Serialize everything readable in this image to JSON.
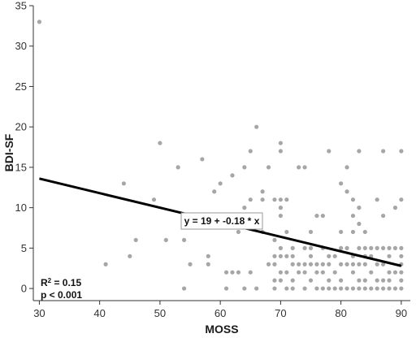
{
  "chart_data": {
    "type": "scatter",
    "xlabel": "MOSS",
    "ylabel": "BDI-SF",
    "xlim": [
      29,
      91.5
    ],
    "ylim": [
      -1.5,
      35
    ],
    "xticks": [
      30,
      40,
      50,
      60,
      70,
      80,
      90
    ],
    "yticks": [
      0,
      5,
      10,
      15,
      20,
      25,
      30,
      35
    ],
    "grid": false,
    "point_color": "#a6a6a6",
    "line_color": "#000000",
    "points": [
      [
        30,
        33
      ],
      [
        41,
        3
      ],
      [
        44,
        13
      ],
      [
        45,
        4
      ],
      [
        46,
        6
      ],
      [
        49,
        11
      ],
      [
        50,
        18
      ],
      [
        51,
        6
      ],
      [
        53,
        15
      ],
      [
        54,
        6
      ],
      [
        54,
        0
      ],
      [
        55,
        3
      ],
      [
        57,
        16
      ],
      [
        57,
        9
      ],
      [
        58,
        4
      ],
      [
        58,
        3
      ],
      [
        59,
        12
      ],
      [
        60,
        13
      ],
      [
        61,
        2
      ],
      [
        61,
        0
      ],
      [
        62,
        14
      ],
      [
        62,
        2
      ],
      [
        63,
        7
      ],
      [
        63,
        2
      ],
      [
        64,
        15
      ],
      [
        64,
        10
      ],
      [
        64,
        0
      ],
      [
        65,
        17
      ],
      [
        65,
        11
      ],
      [
        65,
        2
      ],
      [
        66,
        20
      ],
      [
        66,
        8
      ],
      [
        66,
        0
      ],
      [
        67,
        12
      ],
      [
        67,
        11
      ],
      [
        67,
        7
      ],
      [
        68,
        15
      ],
      [
        68,
        3
      ],
      [
        69,
        11
      ],
      [
        69,
        6
      ],
      [
        69,
        4
      ],
      [
        69,
        3
      ],
      [
        69,
        1
      ],
      [
        69,
        0
      ],
      [
        70,
        18
      ],
      [
        70,
        17
      ],
      [
        70,
        11
      ],
      [
        70,
        10
      ],
      [
        70,
        9
      ],
      [
        70,
        5
      ],
      [
        70,
        4
      ],
      [
        70,
        2
      ],
      [
        70,
        1
      ],
      [
        71,
        11
      ],
      [
        71,
        7
      ],
      [
        71,
        4
      ],
      [
        71,
        2
      ],
      [
        71,
        0
      ],
      [
        72,
        5
      ],
      [
        72,
        4
      ],
      [
        72,
        3
      ],
      [
        72,
        1
      ],
      [
        72,
        0
      ],
      [
        73,
        15
      ],
      [
        73,
        3
      ],
      [
        73,
        2
      ],
      [
        74,
        15
      ],
      [
        74,
        5
      ],
      [
        74,
        3
      ],
      [
        74,
        2
      ],
      [
        74,
        0
      ],
      [
        75,
        7
      ],
      [
        75,
        5
      ],
      [
        75,
        4
      ],
      [
        75,
        3
      ],
      [
        75,
        1
      ],
      [
        76,
        9
      ],
      [
        76,
        3
      ],
      [
        76,
        2
      ],
      [
        76,
        0
      ],
      [
        77,
        9
      ],
      [
        77,
        5
      ],
      [
        77,
        3
      ],
      [
        77,
        2
      ],
      [
        77,
        0
      ],
      [
        78,
        17
      ],
      [
        78,
        4
      ],
      [
        78,
        3
      ],
      [
        78,
        1
      ],
      [
        78,
        0
      ],
      [
        79,
        4
      ],
      [
        79,
        2
      ],
      [
        79,
        0
      ],
      [
        80,
        13
      ],
      [
        80,
        7
      ],
      [
        80,
        5
      ],
      [
        80,
        3
      ],
      [
        80,
        1
      ],
      [
        80,
        0
      ],
      [
        81,
        15
      ],
      [
        81,
        12
      ],
      [
        81,
        5
      ],
      [
        81,
        3
      ],
      [
        81,
        0
      ],
      [
        82,
        11
      ],
      [
        82,
        9
      ],
      [
        82,
        7
      ],
      [
        82,
        4
      ],
      [
        82,
        3
      ],
      [
        82,
        2
      ],
      [
        82,
        0
      ],
      [
        83,
        17
      ],
      [
        83,
        10
      ],
      [
        83,
        8
      ],
      [
        83,
        5
      ],
      [
        83,
        3
      ],
      [
        83,
        1
      ],
      [
        83,
        0
      ],
      [
        84,
        7
      ],
      [
        84,
        5
      ],
      [
        84,
        4
      ],
      [
        84,
        3
      ],
      [
        84,
        1
      ],
      [
        84,
        0
      ],
      [
        85,
        5
      ],
      [
        85,
        4
      ],
      [
        85,
        2
      ],
      [
        85,
        0
      ],
      [
        86,
        11
      ],
      [
        86,
        5
      ],
      [
        86,
        3
      ],
      [
        86,
        1
      ],
      [
        86,
        0
      ],
      [
        87,
        17
      ],
      [
        87,
        9
      ],
      [
        87,
        5
      ],
      [
        87,
        3
      ],
      [
        87,
        1
      ],
      [
        87,
        0
      ],
      [
        88,
        5
      ],
      [
        88,
        4
      ],
      [
        88,
        2
      ],
      [
        88,
        1
      ],
      [
        88,
        0
      ],
      [
        89,
        10
      ],
      [
        89,
        5
      ],
      [
        89,
        2
      ],
      [
        89,
        0
      ],
      [
        90,
        17
      ],
      [
        90,
        11
      ],
      [
        90,
        5
      ],
      [
        90,
        4
      ],
      [
        90,
        3
      ],
      [
        90,
        2
      ],
      [
        90,
        1
      ],
      [
        90,
        0
      ]
    ],
    "regression": {
      "intercept": 19,
      "slope": -0.18,
      "x_range": [
        30,
        90
      ]
    },
    "equation_label": "y = 19 + -0.18 * x",
    "r2_prefix": "R",
    "r2_sup": "2",
    "r2_value": " = 0.15",
    "p_label": "p < 0.001"
  }
}
